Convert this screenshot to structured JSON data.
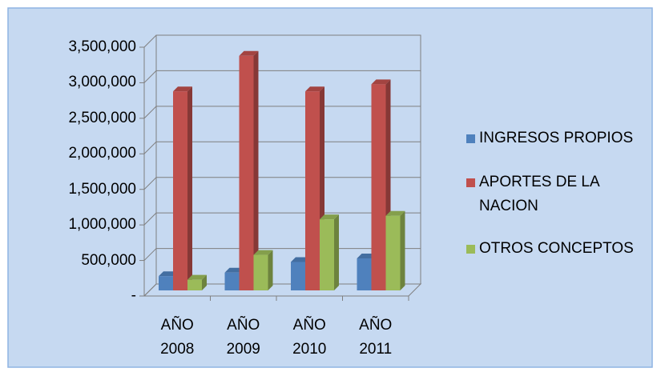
{
  "chart_data": {
    "type": "bar3d",
    "categories": [
      "AÑO 2008",
      "AÑO 2009",
      "AÑO 2010",
      "AÑO 2011"
    ],
    "series": [
      {
        "name": "INGRESOS PROPIOS",
        "color": "#4f81bd",
        "values": [
          200000,
          250000,
          400000,
          450000
        ]
      },
      {
        "name": "APORTES DE LA NACION",
        "color": "#c0504d",
        "values": [
          2800000,
          3300000,
          2800000,
          2900000
        ]
      },
      {
        "name": "OTROS CONCEPTOS",
        "color": "#9bbb59",
        "values": [
          150000,
          500000,
          1000000,
          1050000
        ]
      }
    ],
    "ylim": [
      0,
      3500000
    ],
    "yticks": [
      {
        "value": 0,
        "label": "-"
      },
      {
        "value": 500000,
        "label": "500,000"
      },
      {
        "value": 1000000,
        "label": "1,000,000"
      },
      {
        "value": 1500000,
        "label": "1,500,000"
      },
      {
        "value": 2000000,
        "label": "2,000,000"
      },
      {
        "value": 2500000,
        "label": "2,500,000"
      },
      {
        "value": 3000000,
        "label": "3,000,000"
      },
      {
        "value": 3500000,
        "label": "3,500,000"
      }
    ],
    "grid": true,
    "legend": "right"
  }
}
